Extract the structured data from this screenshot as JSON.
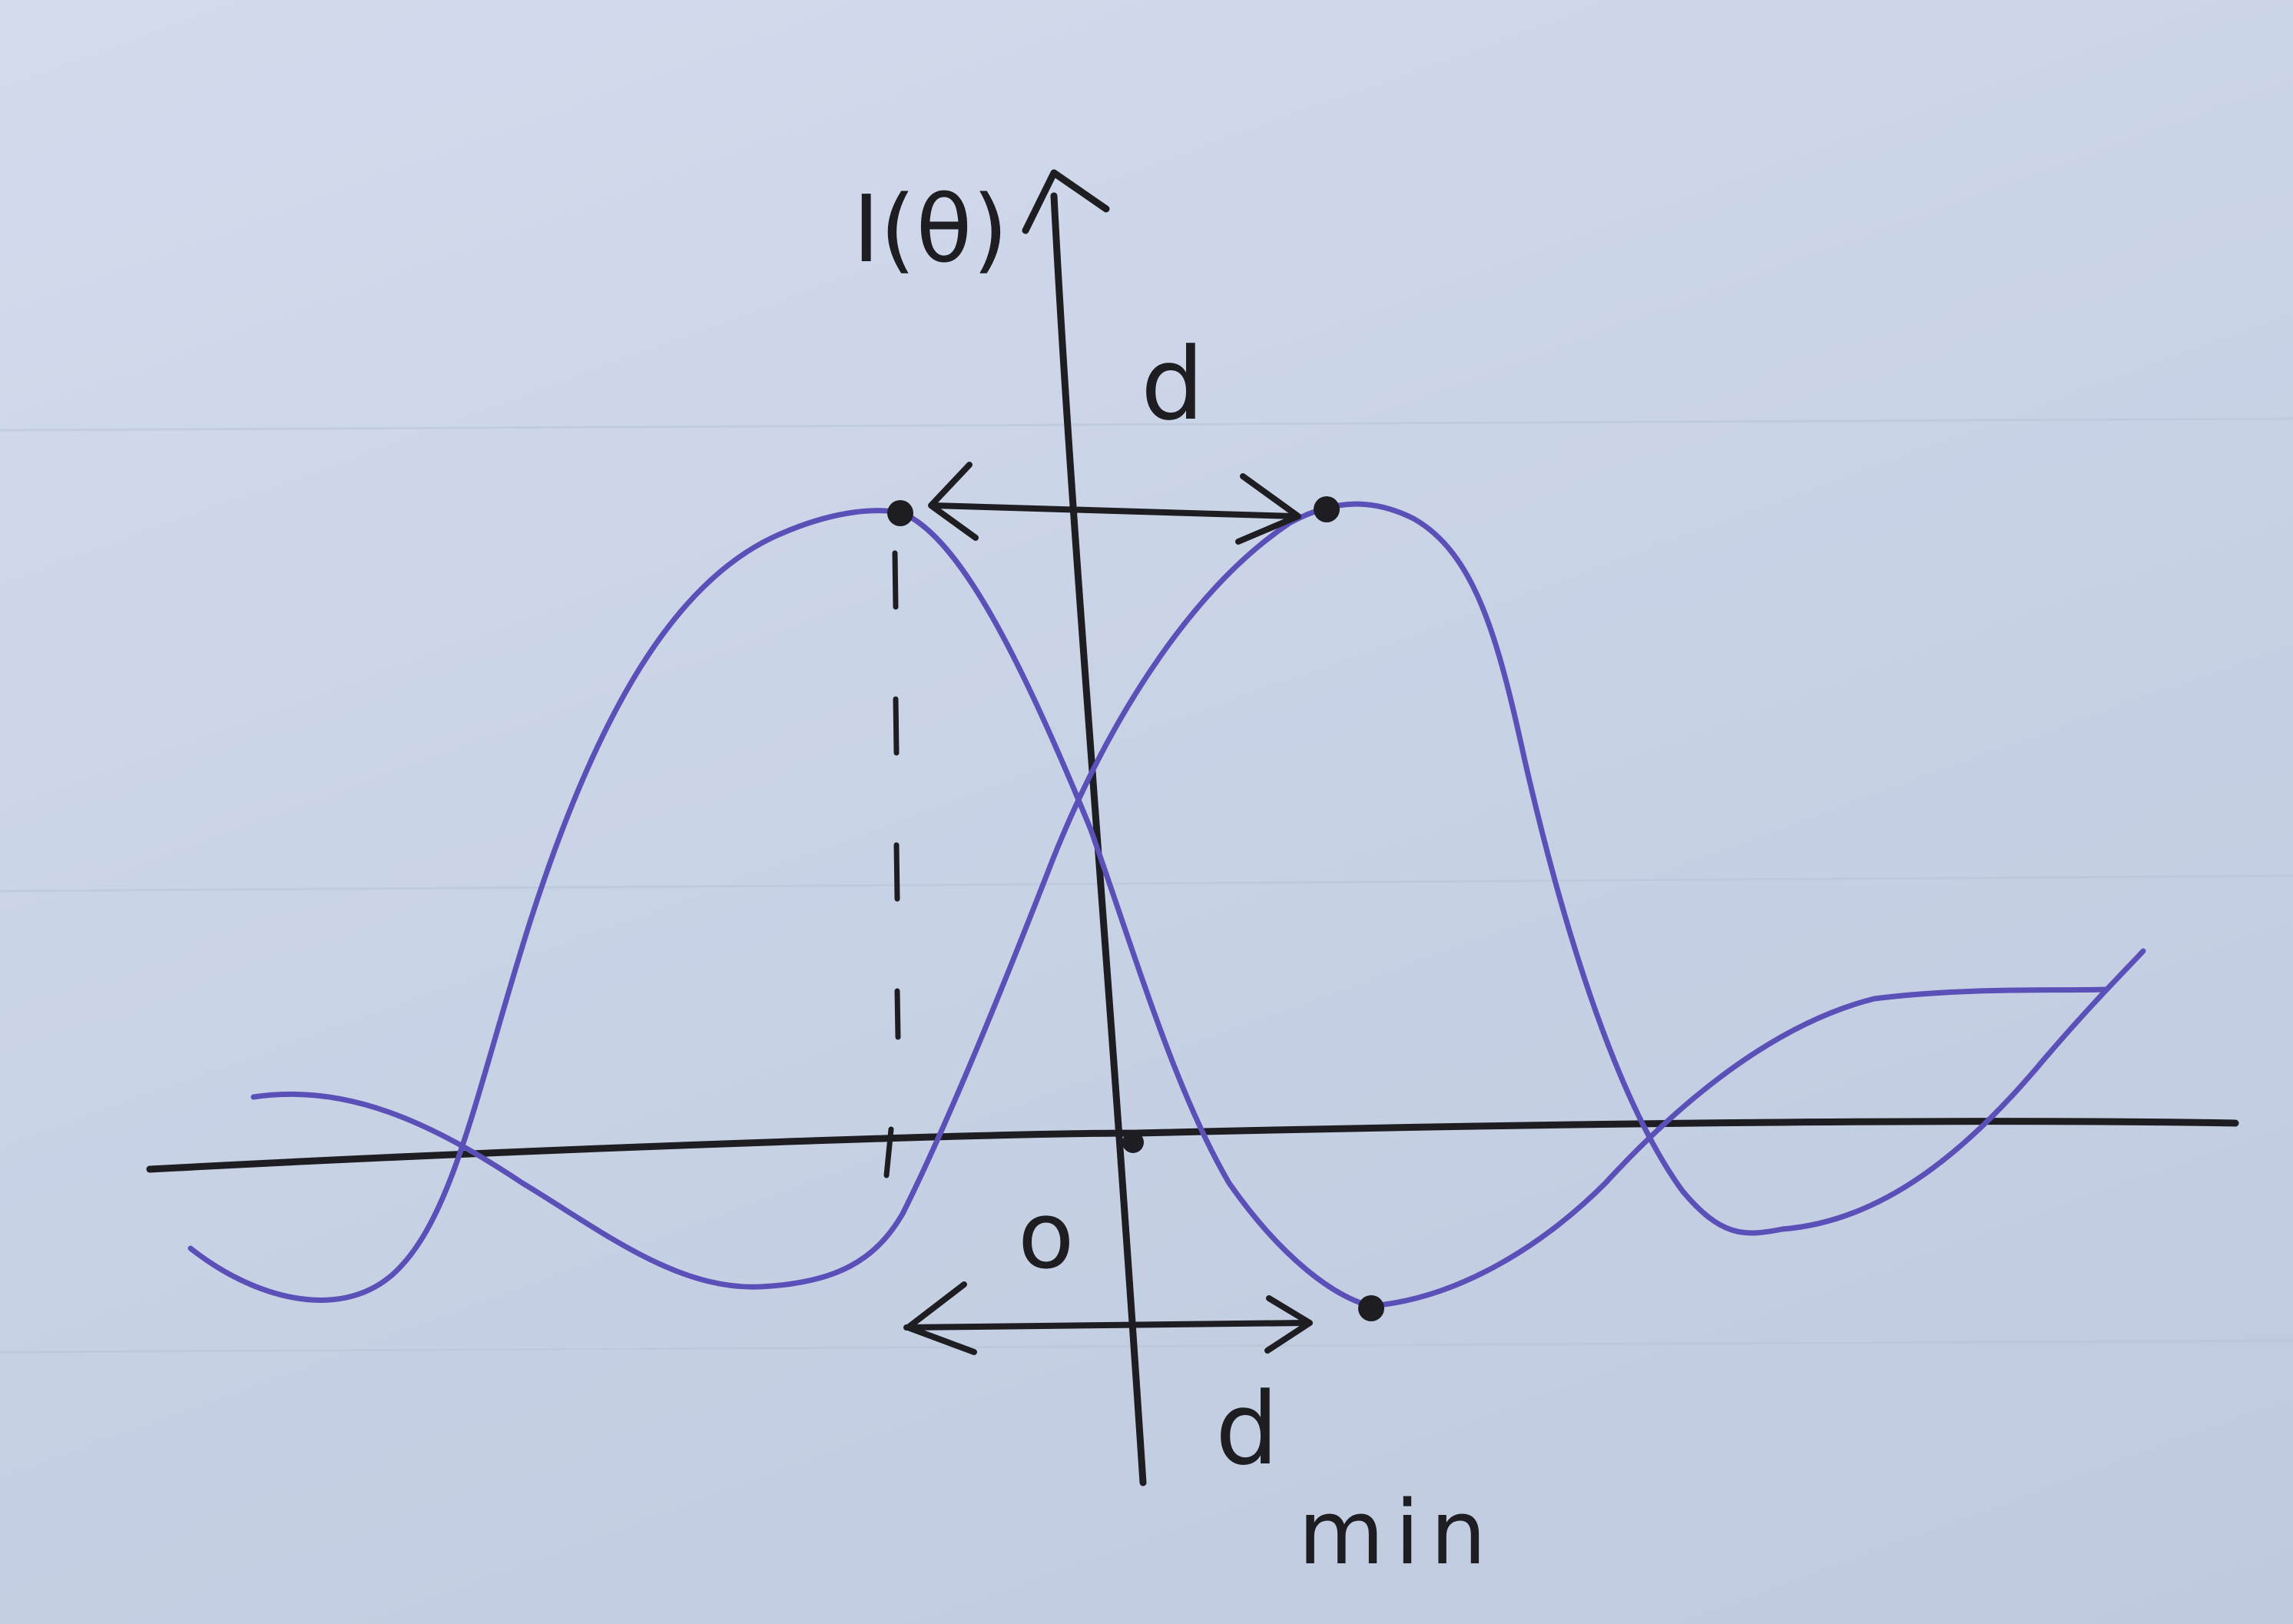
{
  "labels": {
    "y_axis": "I(θ)",
    "separation_top": "d",
    "origin": "o",
    "separation_bottom_main": "d",
    "separation_bottom_sub": "min"
  },
  "colors": {
    "paper": "#c9d4e6",
    "ink_black": "#1d1d22",
    "ink_purple": "#5b4fb8"
  }
}
